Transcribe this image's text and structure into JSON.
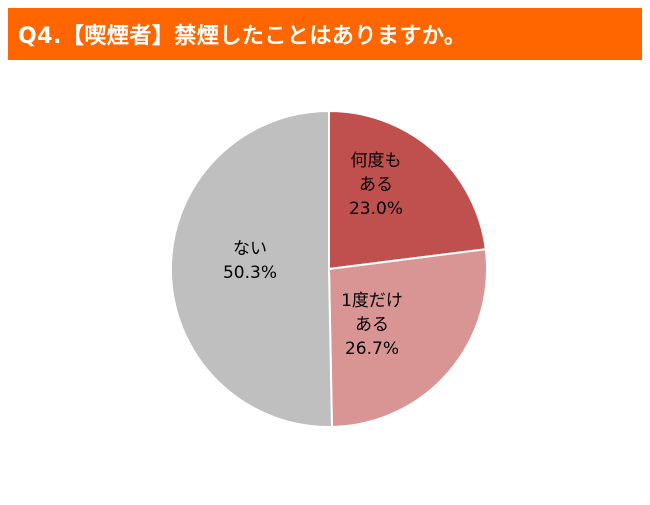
{
  "title": "Q4.【喫煙者】禁煙したことはありますか。",
  "chart_data": {
    "type": "pie",
    "slices": [
      {
        "label_lines": [
          "何度も",
          "ある"
        ],
        "value": 23.0,
        "value_text": "23.0%",
        "color": "#c0504d"
      },
      {
        "label_lines": [
          "1度だけ",
          "ある"
        ],
        "value": 26.7,
        "value_text": "26.7%",
        "color": "#d99594"
      },
      {
        "label_lines": [
          "ない"
        ],
        "value": 50.3,
        "value_text": "50.3%",
        "color": "#bfbfbf"
      }
    ],
    "start": "12 o'clock",
    "direction": "clockwise",
    "legend": "none",
    "accent_color": "#ff6600"
  }
}
